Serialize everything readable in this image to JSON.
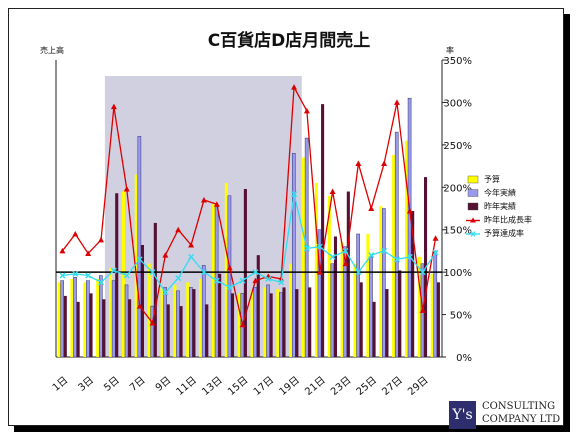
{
  "chart_data": {
    "type": "bar",
    "title": "C百貨店D店月間売上",
    "ylabel": "売上高",
    "y2label": "率",
    "xlabel": "",
    "x_ticks": [
      "1日",
      "3日",
      "5日",
      "7日",
      "9日",
      "11日",
      "13日",
      "15日",
      "17日",
      "19日",
      "21日",
      "23日",
      "25日",
      "27日",
      "29日"
    ],
    "y2_ticks": [
      "0%",
      "50%",
      "100%",
      "150%",
      "200%",
      "250%",
      "300%",
      "350%"
    ],
    "y2lim": [
      0,
      350
    ],
    "reference_line": 100,
    "categories": [
      "1日",
      "2日",
      "3日",
      "4日",
      "5日",
      "6日",
      "7日",
      "8日",
      "9日",
      "10日",
      "11日",
      "12日",
      "13日",
      "14日",
      "15日",
      "16日",
      "17日",
      "18日",
      "19日",
      "20日",
      "21日",
      "22日",
      "23日",
      "24日",
      "25日",
      "26日",
      "27日",
      "28日",
      "29日",
      "30日"
    ],
    "series": [
      {
        "name": "予算",
        "kind": "bar",
        "color": "#ffff00",
        "values": [
          88,
          92,
          88,
          92,
          105,
          195,
          215,
          110,
          82,
          85,
          88,
          92,
          180,
          205,
          75,
          78,
          82,
          80,
          110,
          235,
          205,
          190,
          135,
          110,
          145,
          178,
          238,
          255,
          118,
          98
        ]
      },
      {
        "name": "今年実績",
        "kind": "bar",
        "color": "#9999ee",
        "values": [
          90,
          94,
          90,
          96,
          90,
          85,
          260,
          60,
          82,
          78,
          82,
          108,
          178,
          190,
          75,
          82,
          85,
          76,
          240,
          258,
          150,
          110,
          130,
          145,
          118,
          175,
          265,
          305,
          110,
          125
        ]
      },
      {
        "name": "昨年実績",
        "kind": "bar",
        "color": "#551133",
        "values": [
          72,
          65,
          75,
          68,
          193,
          68,
          132,
          158,
          62,
          60,
          80,
          62,
          98,
          75,
          198,
          120,
          75,
          82,
          80,
          82,
          298,
          142,
          195,
          88,
          65,
          80,
          102,
          172,
          212,
          88
        ]
      },
      {
        "name": "昨年比成長率",
        "kind": "line",
        "color": "#dd0000",
        "marker": "triangle",
        "values": [
          125,
          145,
          122,
          138,
          295,
          198,
          60,
          40,
          120,
          150,
          132,
          185,
          180,
          105,
          38,
          90,
          95,
          92,
          318,
          290,
          100,
          195,
          110,
          228,
          175,
          228,
          300,
          172,
          55,
          140
        ]
      },
      {
        "name": "予算達成率",
        "kind": "line",
        "color": "#33ddee",
        "marker": "x",
        "values": [
          96,
          98,
          96,
          88,
          102,
          96,
          115,
          100,
          76,
          93,
          118,
          100,
          90,
          82,
          90,
          100,
          92,
          88,
          192,
          128,
          130,
          118,
          125,
          100,
          120,
          125,
          115,
          118,
          100,
          123
        ]
      }
    ],
    "legend_position": "right",
    "watermark": "CONSULTING COMPANY LTD"
  },
  "logo": {
    "mark": "Y's",
    "line1": "CONSULTING",
    "line2": "COMPANY LTD"
  }
}
